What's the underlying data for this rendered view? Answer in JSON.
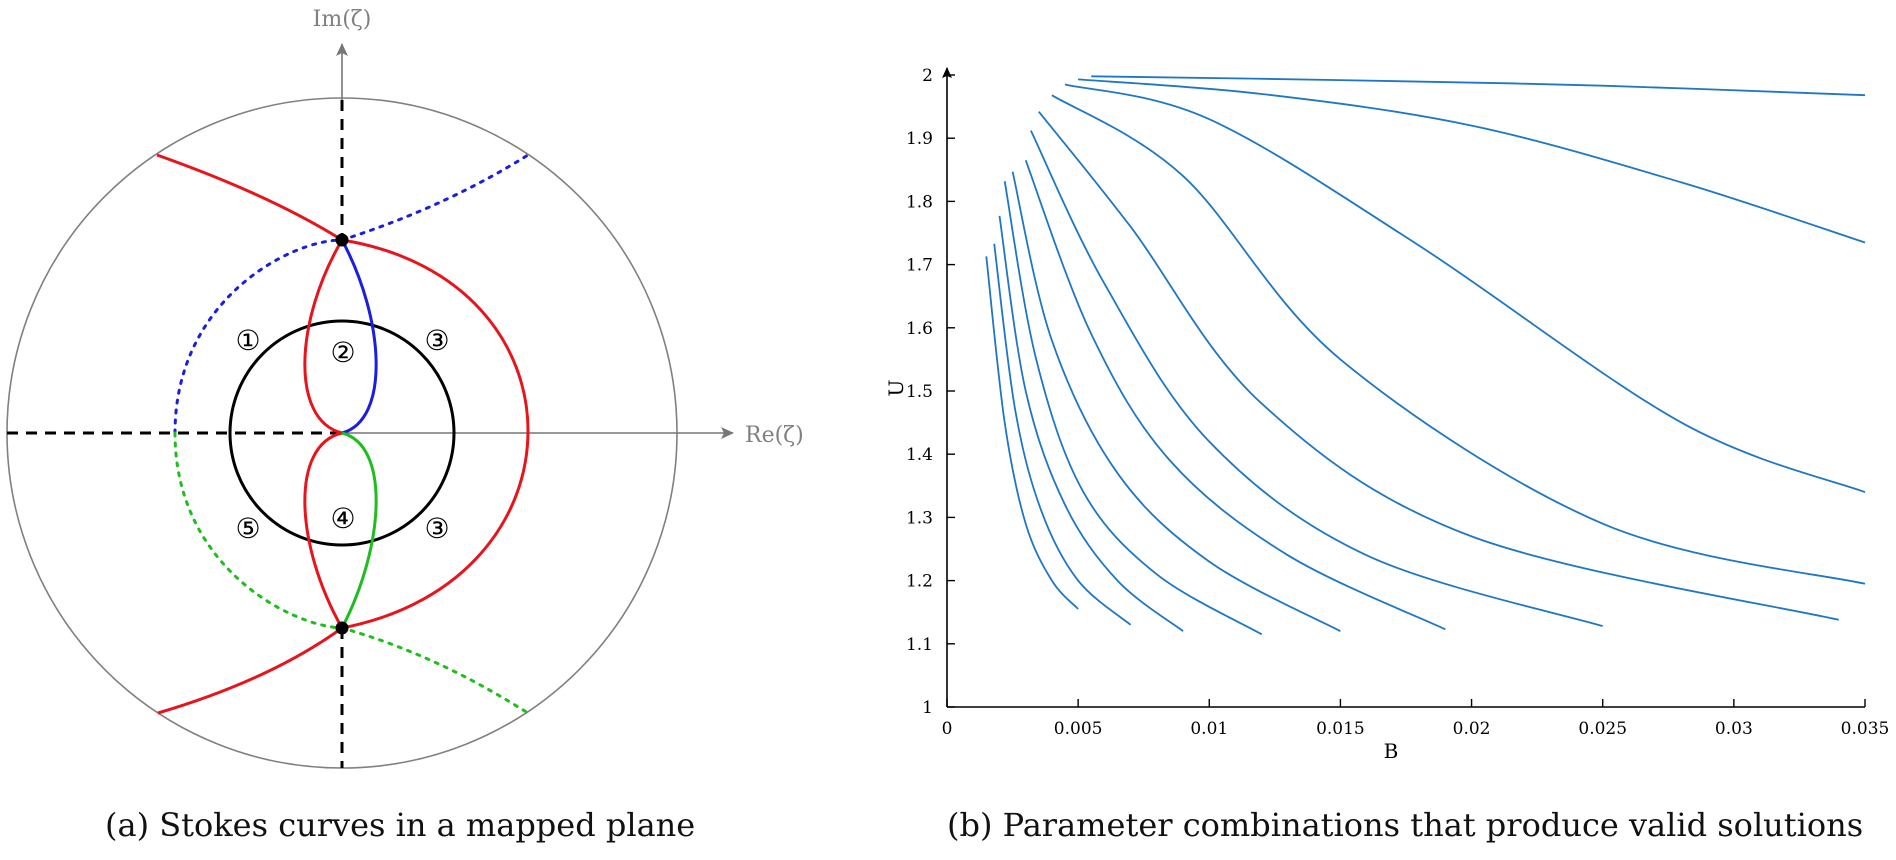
{
  "figure": {
    "panel_a": {
      "caption": "(a) Stokes curves in a mapped plane",
      "x_axis_label": "Re(ζ)",
      "y_axis_label": "Im(ζ)",
      "region_labels": [
        "①",
        "②",
        "③",
        "③",
        "④",
        "⑤"
      ],
      "colors": {
        "boundary": "#808080",
        "red": "#e8141c",
        "blue": "#1a1ee0",
        "green": "#1fbd1f",
        "black": "#000000"
      }
    },
    "panel_b": {
      "caption": "(b) Parameter combinations that produce valid solutions"
    }
  },
  "chart_data": {
    "type": "line",
    "title": "",
    "xlabel": "B",
    "ylabel": "U",
    "xlim": [
      0,
      0.035
    ],
    "ylim": [
      1,
      2
    ],
    "xticks": [
      "0",
      "0.005",
      "0.01",
      "0.015",
      "0.02",
      "0.025",
      "0.03",
      "0.035"
    ],
    "yticks": [
      "1",
      "1.1",
      "1.2",
      "1.3",
      "1.4",
      "1.5",
      "1.6",
      "1.7",
      "1.8",
      "1.9",
      "2"
    ],
    "grid": false,
    "line_color": "#1f77c4",
    "series": [
      {
        "x": [
          0.0015,
          0.0022,
          0.003,
          0.004,
          0.005
        ],
        "y": [
          1.713,
          1.45,
          1.29,
          1.2,
          1.155
        ]
      },
      {
        "x": [
          0.0018,
          0.0026,
          0.0036,
          0.005,
          0.007
        ],
        "y": [
          1.733,
          1.47,
          1.31,
          1.2,
          1.13
        ]
      },
      {
        "x": [
          0.002,
          0.003,
          0.0045,
          0.0065,
          0.009
        ],
        "y": [
          1.777,
          1.5,
          1.32,
          1.2,
          1.12
        ]
      },
      {
        "x": [
          0.0022,
          0.0034,
          0.0052,
          0.008,
          0.012
        ],
        "y": [
          1.832,
          1.55,
          1.34,
          1.21,
          1.115
        ]
      },
      {
        "x": [
          0.0025,
          0.004,
          0.0065,
          0.01,
          0.015
        ],
        "y": [
          1.847,
          1.58,
          1.37,
          1.23,
          1.12
        ]
      },
      {
        "x": [
          0.003,
          0.0055,
          0.0085,
          0.013,
          0.019
        ],
        "y": [
          1.865,
          1.59,
          1.39,
          1.24,
          1.123
        ]
      },
      {
        "x": [
          0.0032,
          0.006,
          0.01,
          0.016,
          0.025
        ],
        "y": [
          1.912,
          1.67,
          1.42,
          1.24,
          1.128
        ]
      },
      {
        "x": [
          0.0035,
          0.007,
          0.012,
          0.02,
          0.034
        ],
        "y": [
          1.942,
          1.76,
          1.48,
          1.27,
          1.138
        ]
      },
      {
        "x": [
          0.004,
          0.009,
          0.015,
          0.025,
          0.035
        ],
        "y": [
          1.968,
          1.84,
          1.55,
          1.29,
          1.195
        ]
      },
      {
        "x": [
          0.0045,
          0.01,
          0.018,
          0.028,
          0.035
        ],
        "y": [
          1.985,
          1.93,
          1.73,
          1.45,
          1.34
        ]
      },
      {
        "x": [
          0.005,
          0.012,
          0.02,
          0.028,
          0.035
        ],
        "y": [
          1.993,
          1.97,
          1.92,
          1.83,
          1.735
        ]
      },
      {
        "x": [
          0.0055,
          0.015,
          0.025,
          0.035
        ],
        "y": [
          1.998,
          1.992,
          1.983,
          1.968
        ]
      }
    ]
  }
}
